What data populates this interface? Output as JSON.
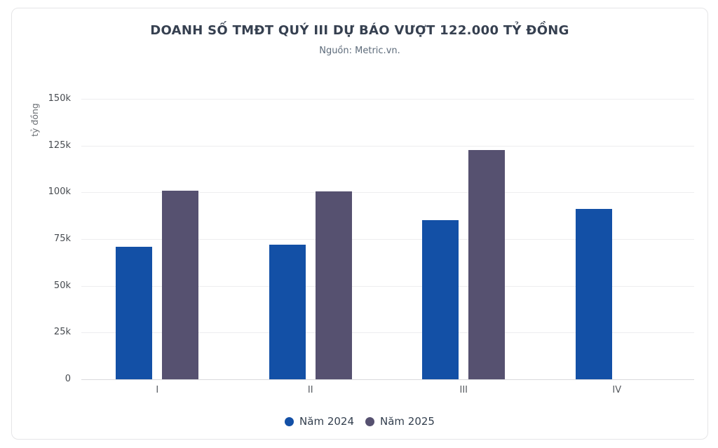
{
  "accent_colors": {
    "series_2024": "#1350a6",
    "series_2025": "#565170",
    "card_border": "#e5e5e7",
    "gridline": "#ededef",
    "axis_line": "#d9dadd",
    "title_text": "#364050",
    "subtitle_text": "#5d6b7a"
  },
  "chart_data": {
    "type": "bar",
    "title": "DOANH SỐ TMĐT QUÝ III DỰ BÁO VƯỢT 122.000 TỶ ĐỒNG",
    "subtitle": "Nguồn: Metric.vn.",
    "xlabel": "",
    "ylabel": "tỷ đồng",
    "categories": [
      "I",
      "II",
      "III",
      "IV"
    ],
    "series": [
      {
        "name": "Năm 2024",
        "color": "#1350a6",
        "values": [
          71000,
          72000,
          85000,
          91000
        ]
      },
      {
        "name": "Năm 2025",
        "color": "#565170",
        "values": [
          101000,
          100500,
          122500,
          null
        ]
      }
    ],
    "ylim": [
      0,
      150000
    ],
    "ytick_step": 25000,
    "ytick_labels": [
      "0",
      "25k",
      "50k",
      "75k",
      "100k",
      "125k",
      "150k"
    ],
    "grid": true,
    "legend_position": "bottom"
  }
}
